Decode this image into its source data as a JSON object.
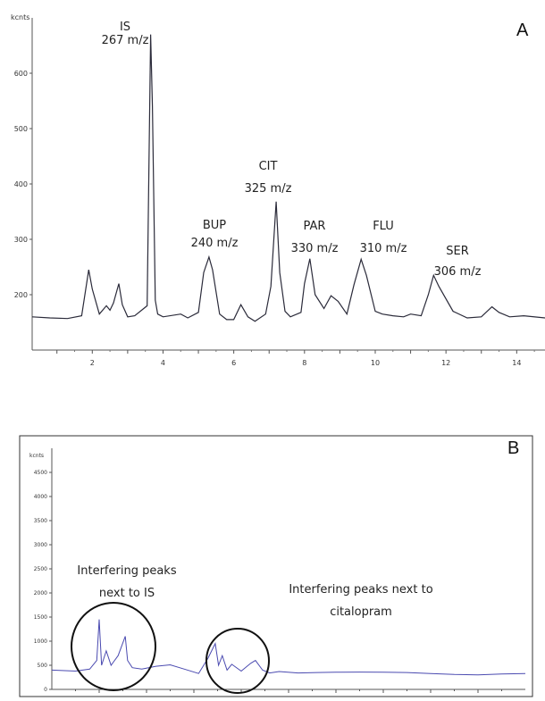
{
  "chart_data": [
    {
      "type": "line",
      "panel": "A",
      "ylabel": "kcnts",
      "x_ticks": [
        "2",
        "4",
        "6",
        "8",
        "10",
        "12",
        "14"
      ],
      "y_ticks": [
        "200",
        "300",
        "400",
        "500",
        "600"
      ],
      "xlim": [
        0.3,
        14.8
      ],
      "ylim": [
        100,
        700
      ],
      "series": [
        {
          "color": "#2b2b3a",
          "x": [
            0.3,
            0.8,
            1.3,
            1.7,
            1.9,
            2.0,
            2.2,
            2.4,
            2.5,
            2.6,
            2.75,
            2.85,
            3.0,
            3.2,
            3.55,
            3.65,
            3.7,
            3.78,
            3.85,
            4.0,
            4.5,
            4.7,
            5.0,
            5.15,
            5.3,
            5.4,
            5.6,
            5.8,
            6.0,
            6.2,
            6.4,
            6.6,
            6.9,
            7.05,
            7.2,
            7.3,
            7.45,
            7.6,
            7.9,
            8.0,
            8.15,
            8.3,
            8.55,
            8.75,
            8.95,
            9.2,
            9.4,
            9.6,
            9.75,
            10.0,
            10.2,
            10.5,
            10.8,
            11.0,
            11.3,
            11.5,
            11.65,
            11.8,
            12.2,
            12.6,
            13.0,
            13.3,
            13.5,
            13.8,
            14.2,
            14.8
          ],
          "y": [
            160,
            158,
            157,
            162,
            245,
            210,
            165,
            180,
            172,
            185,
            220,
            182,
            160,
            162,
            180,
            670,
            540,
            190,
            165,
            160,
            165,
            158,
            168,
            240,
            268,
            245,
            165,
            155,
            155,
            182,
            160,
            152,
            165,
            215,
            368,
            240,
            170,
            160,
            168,
            220,
            265,
            200,
            175,
            198,
            188,
            165,
            218,
            264,
            235,
            170,
            165,
            162,
            160,
            165,
            162,
            200,
            235,
            215,
            170,
            158,
            160,
            178,
            168,
            160,
            162,
            158
          ]
        }
      ],
      "annotations": [
        {
          "line1": "IS",
          "line2": "267 m/z"
        },
        {
          "line1": "BUP",
          "line2": "240 m/z"
        },
        {
          "line1": "CIT",
          "line2": "325 m/z"
        },
        {
          "line1": "PAR",
          "line2": "330 m/z"
        },
        {
          "line1": "FLU",
          "line2": "310 m/z"
        },
        {
          "line1": "SER",
          "line2": "306 m/z"
        }
      ]
    },
    {
      "type": "line",
      "panel": "B",
      "ylabel": "kcnts",
      "y_ticks": [
        "0",
        "500",
        "1000",
        "1500",
        "2000",
        "2500",
        "3000",
        "3500",
        "4000",
        "4500"
      ],
      "x_ticks": [
        "",
        "",
        "",
        "",
        "",
        "",
        "",
        "",
        ""
      ],
      "xlim": [
        0,
        10
      ],
      "ylim": [
        0,
        5000
      ],
      "series": [
        {
          "color": "#4a4ab0",
          "x": [
            0,
            0.5,
            0.8,
            0.95,
            1.0,
            1.05,
            1.15,
            1.25,
            1.4,
            1.55,
            1.6,
            1.7,
            1.9,
            2.2,
            2.5,
            2.8,
            3.1,
            3.3,
            3.45,
            3.52,
            3.6,
            3.7,
            3.8,
            4.0,
            4.2,
            4.3,
            4.45,
            4.6,
            4.8,
            5.2,
            5.6,
            6.0,
            6.5,
            7.0,
            7.5,
            8.0,
            8.5,
            9.0,
            9.5,
            10.0
          ],
          "y": [
            400,
            380,
            420,
            600,
            1450,
            500,
            800,
            500,
            700,
            1100,
            600,
            450,
            420,
            480,
            510,
            420,
            330,
            650,
            950,
            500,
            700,
            400,
            520,
            380,
            540,
            600,
            400,
            340,
            370,
            340,
            350,
            355,
            360,
            355,
            350,
            330,
            310,
            300,
            320,
            330
          ]
        }
      ],
      "annotations": [
        {
          "line1": "Interfering peaks",
          "line2": "next to IS"
        },
        {
          "line1": "Interfering peaks next to",
          "line2": "citalopram"
        }
      ]
    }
  ]
}
